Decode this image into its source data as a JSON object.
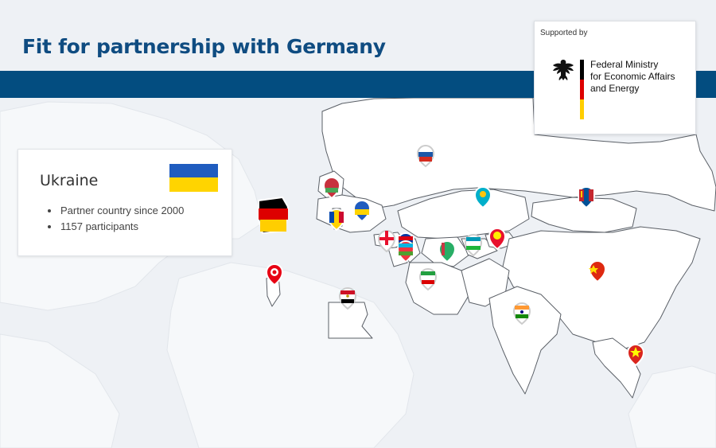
{
  "header": {
    "title": "Fit for partnership with Germany"
  },
  "supporter": {
    "label": "Supported by",
    "ministry_lines": [
      "Federal Ministry",
      "for Economic Affairs",
      "and Energy"
    ],
    "flag_colors": [
      "#000000",
      "#dd0000",
      "#ffce00"
    ]
  },
  "selected_country": {
    "name": "Ukraine",
    "flag_colors": [
      "#1f5cbf",
      "#ffd400"
    ],
    "facts": [
      "Partner country since 2000",
      "1157 participants"
    ]
  },
  "colors": {
    "title": "#0f4c81",
    "band": "#034d80",
    "land": "#ffffff",
    "sea": "#eef1f5"
  },
  "map_pins": [
    {
      "country": "Germany",
      "icon": "germany-flag-marker",
      "colors": [
        "#000000",
        "#dd0000",
        "#ffce00"
      ]
    },
    {
      "country": "Russia",
      "icon": "russia-pin-icon",
      "colors": [
        "#ffffff",
        "#1c57a7",
        "#d52b1e"
      ]
    },
    {
      "country": "Belarus",
      "icon": "belarus-pin-icon",
      "colors": [
        "#c8313e",
        "#4aa657"
      ]
    },
    {
      "country": "Ukraine",
      "icon": "ukraine-pin-icon",
      "colors": [
        "#1f5cbf",
        "#ffd400"
      ]
    },
    {
      "country": "Moldova",
      "icon": "moldova-pin-icon",
      "colors": [
        "#0046ae",
        "#ffd200",
        "#cc092f"
      ]
    },
    {
      "country": "Georgia",
      "icon": "georgia-pin-icon",
      "colors": [
        "#ffffff",
        "#e8112d"
      ]
    },
    {
      "country": "Armenia",
      "icon": "armenia-pin-icon",
      "colors": [
        "#d90012",
        "#0033a0",
        "#f2a800"
      ]
    },
    {
      "country": "Azerbaijan",
      "icon": "azerbaijan-pin-icon",
      "colors": [
        "#00b5e2",
        "#ef3340",
        "#509e2f"
      ]
    },
    {
      "country": "Kazakhstan",
      "icon": "kazakhstan-pin-icon",
      "colors": [
        "#00afca",
        "#fec50c"
      ]
    },
    {
      "country": "Turkmenistan",
      "icon": "turkmenistan-pin-icon",
      "colors": [
        "#28ae66",
        "#ca3745"
      ]
    },
    {
      "country": "Uzbekistan",
      "icon": "uzbekistan-pin-icon",
      "colors": [
        "#1eb53a",
        "#ffffff",
        "#0099b5"
      ]
    },
    {
      "country": "Kyrgyzstan",
      "icon": "kyrgyzstan-pin-icon",
      "colors": [
        "#e8112d",
        "#ffef00"
      ]
    },
    {
      "country": "Mongolia",
      "icon": "mongolia-pin-icon",
      "colors": [
        "#c4272f",
        "#015197",
        "#f9cf02"
      ]
    },
    {
      "country": "China",
      "icon": "china-pin-icon",
      "colors": [
        "#de2910",
        "#ffde00"
      ]
    },
    {
      "country": "Iran",
      "icon": "iran-pin-icon",
      "colors": [
        "#239f40",
        "#ffffff",
        "#da0000"
      ]
    },
    {
      "country": "India",
      "icon": "india-pin-icon",
      "colors": [
        "#ff9933",
        "#ffffff",
        "#138808"
      ]
    },
    {
      "country": "Vietnam",
      "icon": "vietnam-pin-icon",
      "colors": [
        "#da251d",
        "#ffff00"
      ]
    },
    {
      "country": "Tunisia",
      "icon": "tunisia-pin-icon",
      "colors": [
        "#e70013",
        "#ffffff"
      ]
    },
    {
      "country": "Egypt",
      "icon": "egypt-pin-icon",
      "colors": [
        "#ce1126",
        "#ffffff",
        "#000000"
      ]
    }
  ]
}
